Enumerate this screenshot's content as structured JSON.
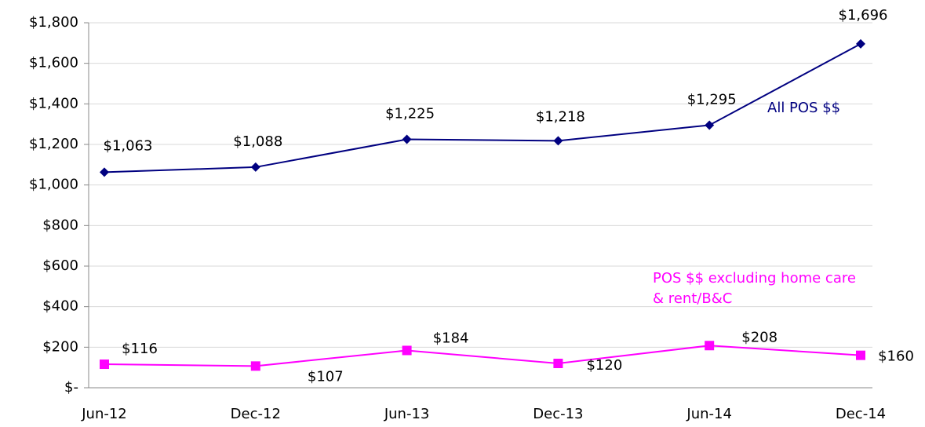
{
  "chart_data": {
    "type": "line",
    "categories": [
      "Jun-12",
      "Dec-12",
      "Jun-13",
      "Dec-13",
      "Jun-14",
      "Dec-14"
    ],
    "series": [
      {
        "name": "All POS $$",
        "color": "#000080",
        "marker": "diamond",
        "values": [
          1063,
          1088,
          1225,
          1218,
          1295,
          1696
        ],
        "value_labels": [
          "$1,063",
          "$1,088",
          "$1,225",
          "$1,218",
          "$1,295",
          "$1,696"
        ]
      },
      {
        "name": "POS $$ excluding home care & rent/B&C",
        "color": "#ff00ff",
        "marker": "square",
        "values": [
          116,
          107,
          184,
          120,
          208,
          160
        ],
        "value_labels": [
          "$116",
          "$107",
          "$184",
          "$120",
          "$208",
          "$160"
        ]
      }
    ],
    "ylim": [
      0,
      1800
    ],
    "yticks": [
      {
        "value": 0,
        "label": "$-"
      },
      {
        "value": 200,
        "label": "$200"
      },
      {
        "value": 400,
        "label": "$400"
      },
      {
        "value": 600,
        "label": "$600"
      },
      {
        "value": 800,
        "label": "$800"
      },
      {
        "value": 1000,
        "label": "$1,000"
      },
      {
        "value": 1200,
        "label": "$1,200"
      },
      {
        "value": 1400,
        "label": "$1,400"
      },
      {
        "value": 1600,
        "label": "$1,600"
      },
      {
        "value": 1800,
        "label": "$1,800"
      }
    ],
    "grid": true
  }
}
